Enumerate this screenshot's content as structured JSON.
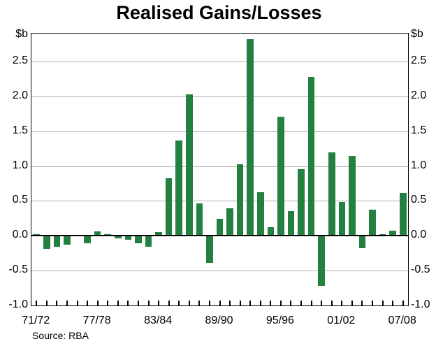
{
  "title": "Realised Gains/Losses",
  "source": "Source: RBA",
  "axis_unit_left": "$b",
  "axis_unit_right": "$b",
  "colors": {
    "bar": "#238040",
    "grid": "#b0b0b0",
    "axis": "#000000",
    "background": "#ffffff",
    "text": "#000000"
  },
  "chart_data": {
    "type": "bar",
    "title": "Realised Gains/Losses",
    "ylabel": "$b",
    "xlabel": "",
    "ylim": [
      -1.0,
      2.9
    ],
    "yticks": [
      2.5,
      2.0,
      1.5,
      1.0,
      0.5,
      0.0,
      -0.5,
      -1.0
    ],
    "grid": true,
    "legend": false,
    "source": "Source: RBA",
    "x_tick_labels": [
      "71/72",
      "77/78",
      "83/84",
      "89/90",
      "95/96",
      "01/02",
      "07/08"
    ],
    "labeled_indices": [
      0,
      6,
      12,
      18,
      24,
      30,
      36
    ],
    "categories": [
      "71/72",
      "72/73",
      "73/74",
      "74/75",
      "75/76",
      "76/77",
      "77/78",
      "78/79",
      "79/80",
      "80/81",
      "81/82",
      "82/83",
      "83/84",
      "84/85",
      "85/86",
      "86/87",
      "87/88",
      "88/89",
      "89/90",
      "90/91",
      "91/92",
      "92/93",
      "93/94",
      "94/95",
      "95/96",
      "96/97",
      "97/98",
      "98/99",
      "99/00",
      "00/01",
      "01/02",
      "02/03",
      "03/04",
      "04/05",
      "05/06",
      "06/07",
      "07/08"
    ],
    "values": [
      0.02,
      -0.19,
      -0.16,
      -0.13,
      -0.01,
      -0.11,
      0.06,
      0.02,
      -0.04,
      -0.06,
      -0.11,
      -0.16,
      0.05,
      0.82,
      1.37,
      2.03,
      0.46,
      -0.39,
      0.24,
      0.39,
      1.03,
      2.82,
      0.62,
      0.12,
      1.71,
      0.35,
      0.96,
      2.28,
      -0.72,
      1.2,
      0.48,
      1.15,
      -0.18,
      0.37,
      0.02,
      0.07,
      0.61
    ]
  }
}
